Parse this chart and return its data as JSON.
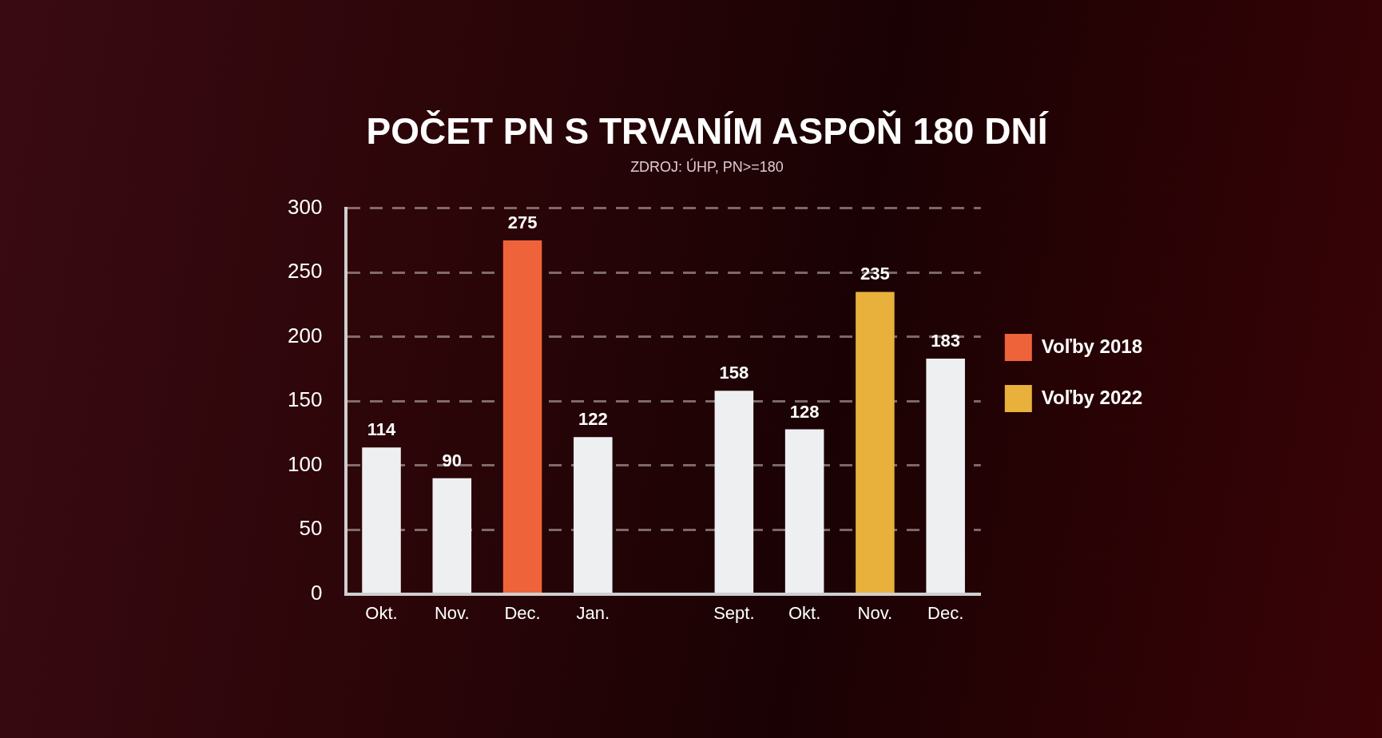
{
  "chart_data": {
    "type": "bar",
    "title": "POČET PN S TRVANÍM ASPOŇ 180 DNÍ",
    "subtitle": "ZDROJ: ÚHP, PN>=180",
    "categories": [
      "Okt.",
      "Nov.",
      "Dec.",
      "Jan.",
      null,
      "Sept.",
      "Okt.",
      "Nov.",
      "Dec."
    ],
    "stacked": true,
    "series": [
      {
        "color": "#eeeff1",
        "values": [
          114,
          90,
          null,
          122,
          null,
          158,
          128,
          null,
          183
        ]
      },
      {
        "name": "Voľby 2018",
        "color": "#ef633b",
        "values": [
          null,
          null,
          275,
          null,
          null,
          null,
          null,
          null,
          null
        ]
      },
      {
        "name": "Voľby 2022",
        "color": "#e8b13c",
        "values": [
          null,
          null,
          null,
          null,
          null,
          null,
          null,
          235,
          null
        ]
      }
    ],
    "ylim": [
      0,
      300
    ],
    "yticks": [
      0,
      50,
      100,
      150,
      200,
      250,
      300
    ],
    "grid": "y",
    "legend": "right",
    "data_labels": true
  }
}
